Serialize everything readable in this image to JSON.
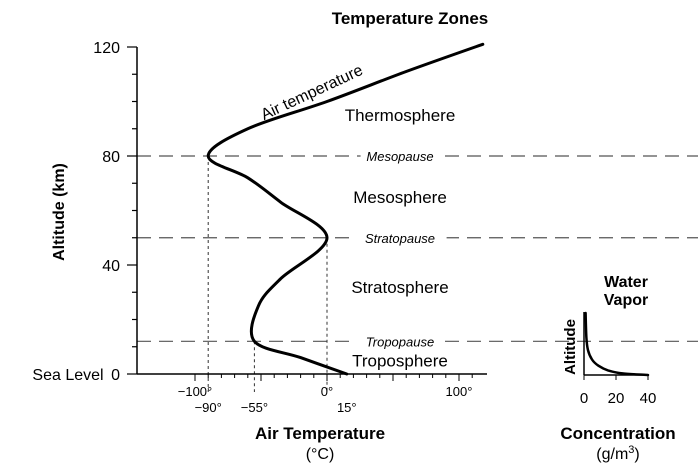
{
  "chart_data": [
    {
      "type": "line",
      "title": "Temperature Zones",
      "xlabel": "Air Temperature",
      "xunit": "(°C)",
      "ylabel": "Altitude (km)",
      "xlim": [
        -110,
        118
      ],
      "ylim": [
        0,
        120
      ],
      "xticks_top": [
        {
          "value": -100,
          "label": "−100°"
        },
        {
          "value": 0,
          "label": "0°"
        },
        {
          "value": 100,
          "label": "100°"
        }
      ],
      "xticks_bottom": [
        {
          "value": -90,
          "label": "−90°"
        },
        {
          "value": -55,
          "label": "−55°"
        },
        {
          "value": 15,
          "label": "15°"
        }
      ],
      "yticks": [
        {
          "value": 0,
          "label": "0"
        },
        {
          "value": 40,
          "label": "40"
        },
        {
          "value": 80,
          "label": "80"
        },
        {
          "value": 120,
          "label": "120"
        }
      ],
      "sea_level_label": "Sea Level",
      "boundaries": [
        {
          "name": "Mesopause",
          "altitude": 80
        },
        {
          "name": "Stratopause",
          "altitude": 50
        },
        {
          "name": "Tropopause",
          "altitude": 12
        }
      ],
      "zones": [
        {
          "name": "Thermosphere",
          "altitude": 95
        },
        {
          "name": "Mesosphere",
          "altitude": 65
        },
        {
          "name": "Stratosphere",
          "altitude": 32
        },
        {
          "name": "Troposphere",
          "altitude": 5
        }
      ],
      "series": [
        {
          "name": "Air temperature",
          "points": [
            [
              15,
              0
            ],
            [
              -20,
              6
            ],
            [
              -55,
              12
            ],
            [
              -52,
              25
            ],
            [
              -35,
              35
            ],
            [
              0,
              50
            ],
            [
              -35,
              63
            ],
            [
              -60,
              72
            ],
            [
              -90,
              80
            ],
            [
              -60,
              90
            ],
            [
              0,
              100
            ],
            [
              60,
              111
            ],
            [
              118,
              121
            ]
          ]
        }
      ]
    },
    {
      "type": "line",
      "title": "Water Vapor",
      "xlabel": "Concentration",
      "xunit": "(g/m",
      "xunit_sup": "3",
      "xunit_close": ")",
      "ylabel": "Altitude",
      "xlim": [
        0,
        40
      ],
      "xticks": [
        {
          "value": 0,
          "label": "0"
        },
        {
          "value": 20,
          "label": "20"
        },
        {
          "value": 40,
          "label": "40"
        }
      ],
      "series": [
        {
          "name": "Water vapor",
          "points": [
            [
              1,
              20
            ],
            [
              1.5,
              12
            ],
            [
              2.5,
              8
            ],
            [
              5,
              5
            ],
            [
              9,
              3
            ],
            [
              15,
              1.5
            ],
            [
              24,
              0.5
            ],
            [
              40,
              0
            ]
          ]
        }
      ]
    }
  ]
}
